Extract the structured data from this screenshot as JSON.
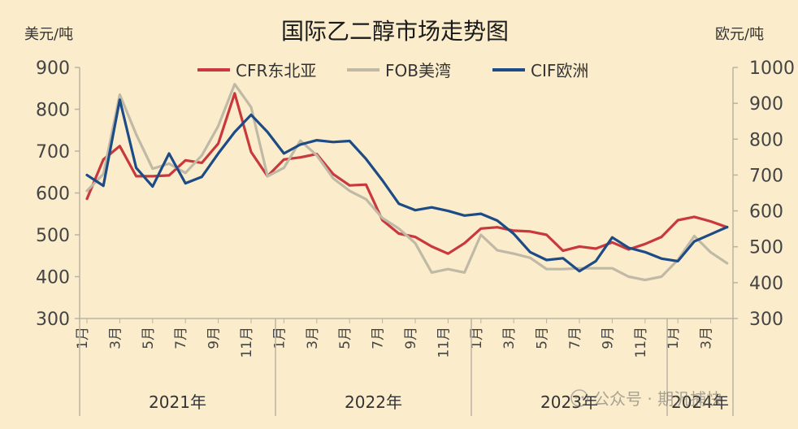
{
  "chart_data": {
    "type": "line",
    "title": "国际乙二醇市场走势图",
    "ylabel_left": "美元/吨",
    "ylabel_right": "欧元/吨",
    "ylim_left": [
      300,
      900
    ],
    "yticks_left": [
      "300",
      "400",
      "500",
      "600",
      "700",
      "800",
      "900"
    ],
    "ylim_right": [
      300,
      1000
    ],
    "yticks_right": [
      "300",
      "400",
      "500",
      "600",
      "700",
      "800",
      "900",
      "1000"
    ],
    "month_ticks": [
      "1月",
      "3月",
      "5月",
      "7月",
      "9月",
      "11月",
      "1月",
      "3月",
      "5月",
      "7月",
      "9月",
      "11月",
      "1月",
      "3月",
      "5月",
      "7月",
      "9月",
      "11月",
      "1月",
      "3月"
    ],
    "year_labels": [
      "2021年",
      "2022年",
      "2023年",
      "2024年"
    ],
    "legend": [
      "CFR东北亚",
      "FOB美湾",
      "CIF欧洲"
    ],
    "series": [
      {
        "name": "CFR东北亚",
        "axis": "left",
        "color": "#c8383c",
        "x": [
          0,
          0.5,
          1,
          1.5,
          2,
          2.5,
          3,
          3.5,
          4,
          4.5,
          5,
          5.5,
          6,
          6.5,
          7,
          7.5,
          8,
          8.5,
          9,
          9.5,
          10,
          10.5,
          11,
          11.5,
          12,
          12.5,
          13,
          13.5,
          14,
          14.5,
          15,
          15.5,
          16,
          16.5,
          17,
          17.5,
          18,
          18.5,
          19,
          19.5
        ],
        "values": [
          586,
          680,
          712,
          640,
          640,
          642,
          678,
          672,
          718,
          838,
          698,
          640,
          680,
          685,
          693,
          645,
          618,
          620,
          535,
          503,
          495,
          472,
          455,
          480,
          515,
          518,
          510,
          508,
          500,
          462,
          472,
          467,
          482,
          465,
          478,
          495,
          535,
          543,
          532,
          518
        ]
      },
      {
        "name": "FOB美湾",
        "axis": "left",
        "color": "#bfb9a6",
        "x": [
          0,
          0.5,
          1,
          1.5,
          2,
          2.5,
          3,
          3.5,
          4,
          4.5,
          5,
          5.5,
          6,
          6.5,
          7,
          7.5,
          8,
          8.5,
          9,
          9.5,
          10,
          10.5,
          11,
          11.5,
          12,
          12.5,
          13,
          13.5,
          14,
          14.5,
          15,
          15.5,
          16,
          16.5,
          17,
          17.5,
          18,
          18.5,
          19,
          19.5
        ],
        "values": [
          605,
          645,
          835,
          740,
          658,
          670,
          648,
          690,
          760,
          860,
          805,
          640,
          660,
          725,
          690,
          635,
          605,
          585,
          540,
          515,
          480,
          410,
          418,
          410,
          500,
          463,
          455,
          445,
          418,
          418,
          420,
          420,
          420,
          400,
          392,
          400,
          440,
          497,
          458,
          432
        ]
      },
      {
        "name": "CIF欧洲",
        "axis": "right",
        "color": "#1d4b86",
        "x": [
          0,
          0.5,
          1,
          1.5,
          2,
          2.5,
          3,
          3.5,
          4,
          4.5,
          5,
          5.5,
          6,
          6.5,
          7,
          7.5,
          8,
          8.5,
          9,
          9.5,
          10,
          10.5,
          11,
          11.5,
          12,
          12.5,
          13,
          13.5,
          14,
          14.5,
          15,
          15.5,
          16,
          16.5,
          17,
          17.5,
          18,
          18.5,
          19,
          19.5
        ],
        "values": [
          700,
          670,
          910,
          720,
          668,
          760,
          677,
          695,
          760,
          820,
          868,
          820,
          760,
          785,
          797,
          792,
          795,
          745,
          685,
          620,
          602,
          610,
          600,
          587,
          592,
          573,
          536,
          485,
          463,
          468,
          432,
          460,
          526,
          497,
          485,
          467,
          460,
          515,
          535,
          555
        ]
      }
    ]
  },
  "watermark": "公众号 · 期汎捕快"
}
